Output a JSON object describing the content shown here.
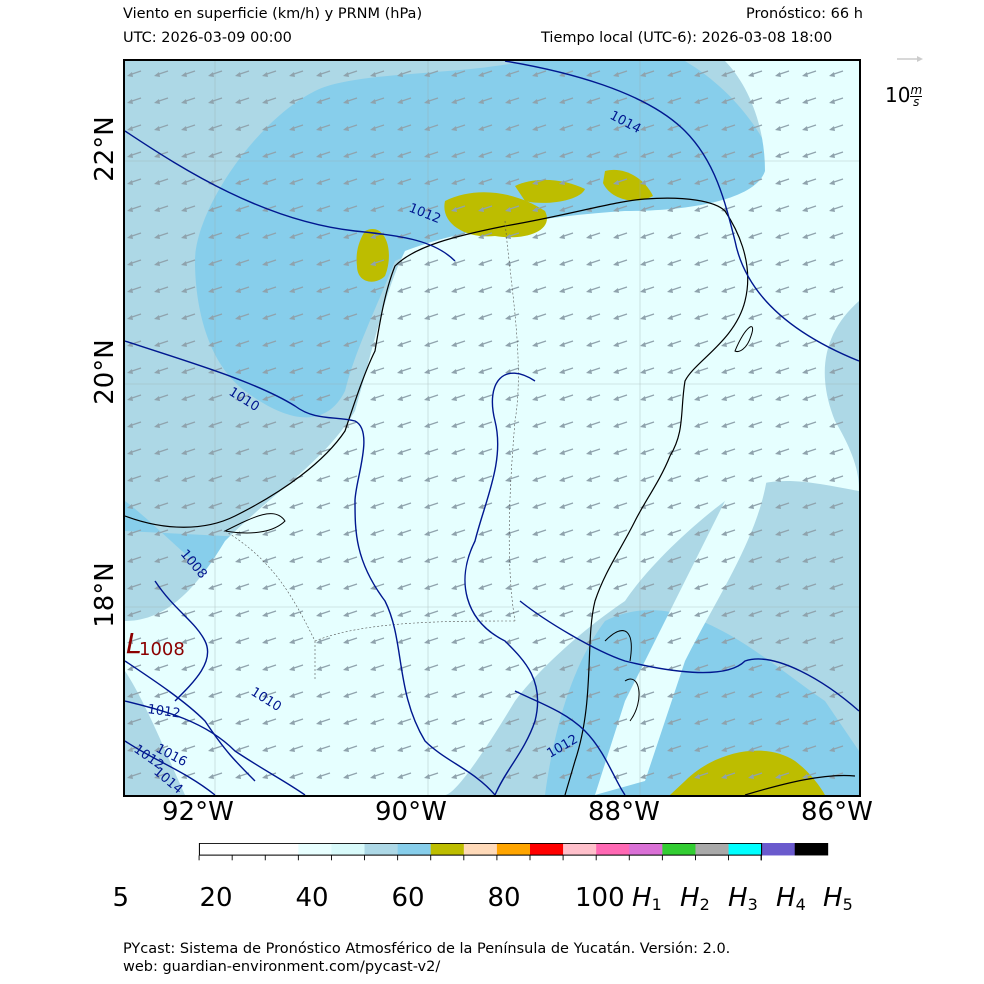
{
  "header": {
    "title": "Viento en superficie (km/h) y PRNM (hPa)",
    "forecast": "Pronóstico: 66 h",
    "utc": "UTC:  2026-03-09 00:00",
    "local_time": "Tiempo local (UTC-6): 2026-03-08 18:00"
  },
  "axes": {
    "lon_labels": [
      "92°W",
      "90°W",
      "88°W",
      "86°W"
    ],
    "lat_labels": [
      "22°N",
      "20°N",
      "18°N"
    ]
  },
  "vector_reference": {
    "label_base": "10",
    "unit_num": "m",
    "unit_den": "s"
  },
  "isobars": {
    "labels": [
      "1014",
      "1012",
      "1010",
      "1008",
      "1010",
      "1012",
      "1016",
      "1012",
      "1014",
      "1012"
    ]
  },
  "low_center": {
    "symbol": "L",
    "value": "1008"
  },
  "colorbar": {
    "tick_labels": [
      "5",
      "20",
      "40",
      "60",
      "80",
      "100"
    ],
    "h_labels": [
      "1",
      "2",
      "3",
      "4",
      "5"
    ],
    "h_prefix": "H",
    "colors": [
      "#ffffff",
      "#ffffff",
      "#ffffff",
      "#e8ffff",
      "#d8fafa",
      "#add8e6",
      "#87ceeb",
      "#bdbd00",
      "#ffdab9",
      "#ffa500",
      "#ff0000",
      "#ffc0cb",
      "#ff69b4",
      "#da70d6",
      "#32cd32",
      "#a9a9a9",
      "#00ffff",
      "#6a5acd",
      "#000000"
    ]
  },
  "footer": {
    "line1": "PYcast: Sistema de Pronóstico Atmosférico de la Península de Yucatán. Versión: 2.0.",
    "line2": "web: guardian-environment.com/pycast-v2/"
  }
}
